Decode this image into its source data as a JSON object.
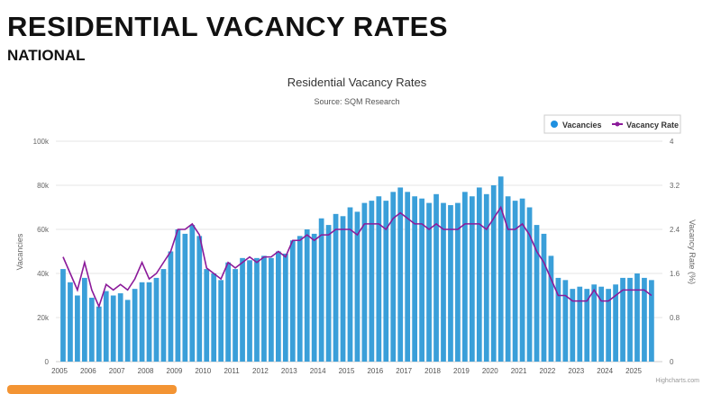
{
  "page": {
    "heading": "RESIDENTIAL VACANCY RATES",
    "subheading": "NATIONAL"
  },
  "chart_data": {
    "type": "bar+line",
    "title": "Residential Vacancy Rates",
    "subtitle": "Source: SQM Research",
    "credit": "Highcharts.com",
    "ylabel": "Vacancies",
    "y2label": "Vacancy Rate (%)",
    "ylim": [
      0,
      100000
    ],
    "y2lim": [
      0,
      4
    ],
    "yticks": [
      "0",
      "20k",
      "40k",
      "60k",
      "80k",
      "100k"
    ],
    "y2ticks": [
      "0",
      "0.8",
      "1.6",
      "2.4",
      "3.2",
      "4"
    ],
    "xticks": [
      "2005",
      "2006",
      "2007",
      "2008",
      "2009",
      "2010",
      "2011",
      "2012",
      "2013",
      "2014",
      "2015",
      "2016",
      "2017",
      "2018",
      "2019",
      "2020",
      "2021",
      "2022",
      "2023",
      "2024",
      "2025"
    ],
    "legend": {
      "placement": "top-right",
      "items": [
        "Vacancies",
        "Vacancy Rate"
      ]
    },
    "colors": {
      "bars": "#3a9fd9",
      "line": "#8b1a9a"
    },
    "grid": true,
    "x_start": "2005 Q1",
    "x_interval": "quarter",
    "series": [
      {
        "name": "Vacancies",
        "values": [
          42000,
          36000,
          30000,
          38000,
          29000,
          25000,
          32000,
          30000,
          31000,
          28000,
          33000,
          36000,
          36000,
          38000,
          42000,
          50000,
          60000,
          58000,
          62000,
          57000,
          42000,
          40000,
          37000,
          45000,
          42000,
          47000,
          46000,
          47000,
          48000,
          47000,
          50000,
          49000,
          55000,
          57000,
          60000,
          58000,
          65000,
          62000,
          67000,
          66000,
          70000,
          68000,
          72000,
          73000,
          75000,
          73000,
          77000,
          79000,
          77000,
          75000,
          74000,
          72000,
          76000,
          72000,
          71000,
          72000,
          77000,
          75000,
          79000,
          76000,
          80000,
          84000,
          75000,
          73000,
          74000,
          70000,
          62000,
          58000,
          48000,
          38000,
          37000,
          33000,
          34000,
          33000,
          35000,
          34000,
          33000,
          35000,
          38000,
          38000,
          40000,
          38000,
          37000
        ]
      },
      {
        "name": "Vacancy Rate",
        "values": [
          1.9,
          1.6,
          1.3,
          1.8,
          1.3,
          1.0,
          1.4,
          1.3,
          1.4,
          1.3,
          1.5,
          1.8,
          1.5,
          1.6,
          1.8,
          2.0,
          2.4,
          2.4,
          2.5,
          2.3,
          1.7,
          1.6,
          1.5,
          1.8,
          1.7,
          1.8,
          1.9,
          1.8,
          1.9,
          1.9,
          2.0,
          1.9,
          2.2,
          2.2,
          2.3,
          2.2,
          2.3,
          2.3,
          2.4,
          2.4,
          2.4,
          2.3,
          2.5,
          2.5,
          2.5,
          2.4,
          2.6,
          2.7,
          2.6,
          2.5,
          2.5,
          2.4,
          2.5,
          2.4,
          2.4,
          2.4,
          2.5,
          2.5,
          2.5,
          2.4,
          2.6,
          2.8,
          2.4,
          2.4,
          2.5,
          2.3,
          2.0,
          1.8,
          1.5,
          1.2,
          1.2,
          1.1,
          1.1,
          1.1,
          1.3,
          1.1,
          1.1,
          1.2,
          1.3,
          1.3,
          1.3,
          1.3,
          1.2
        ]
      }
    ]
  }
}
